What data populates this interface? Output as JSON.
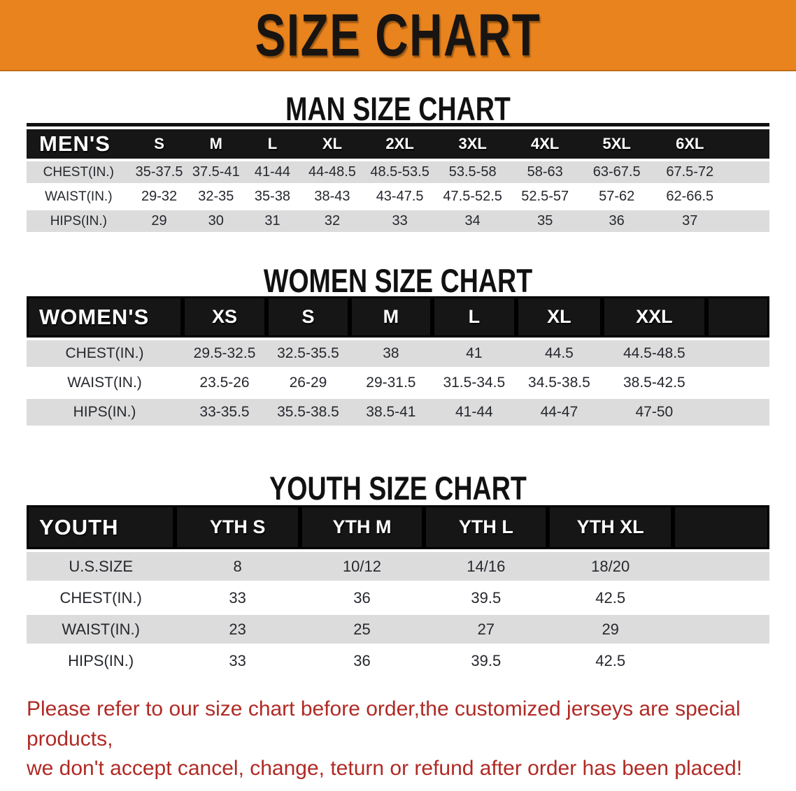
{
  "banner": {
    "title": "SIZE CHART"
  },
  "men": {
    "title": "MAN SIZE CHART",
    "header": [
      "MEN'S",
      "S",
      "M",
      "L",
      "XL",
      "2XL",
      "3XL",
      "4XL",
      "5XL",
      "6XL"
    ],
    "rows": [
      [
        "CHEST(IN.)",
        "35-37.5",
        "37.5-41",
        "41-44",
        "44-48.5",
        "48.5-53.5",
        "53.5-58",
        "58-63",
        "63-67.5",
        "67.5-72"
      ],
      [
        "WAIST(IN.)",
        "29-32",
        "32-35",
        "35-38",
        "38-43",
        "43-47.5",
        "47.5-52.5",
        "52.5-57",
        "57-62",
        "62-66.5"
      ],
      [
        "HIPS(IN.)",
        "29",
        "30",
        "31",
        "32",
        "33",
        "34",
        "35",
        "36",
        "37"
      ]
    ]
  },
  "women": {
    "title": "WOMEN SIZE CHART",
    "header": [
      "WOMEN'S",
      "XS",
      "S",
      "M",
      "L",
      "XL",
      "XXL"
    ],
    "rows": [
      [
        "CHEST(IN.)",
        "29.5-32.5",
        "32.5-35.5",
        "38",
        "41",
        "44.5",
        "44.5-48.5"
      ],
      [
        "WAIST(IN.)",
        "23.5-26",
        "26-29",
        "29-31.5",
        "31.5-34.5",
        "34.5-38.5",
        "38.5-42.5"
      ],
      [
        "HIPS(IN.)",
        "33-35.5",
        "35.5-38.5",
        "38.5-41",
        "41-44",
        "44-47",
        "47-50"
      ]
    ]
  },
  "youth": {
    "title": "YOUTH SIZE CHART",
    "header": [
      "YOUTH",
      "YTH S",
      "YTH M",
      "YTH L",
      "YTH XL"
    ],
    "rows": [
      [
        "U.S.SIZE",
        "8",
        "10/12",
        "14/16",
        "18/20"
      ],
      [
        "CHEST(IN.)",
        "33",
        "36",
        "39.5",
        "42.5"
      ],
      [
        "WAIST(IN.)",
        "23",
        "25",
        "27",
        "29"
      ],
      [
        "HIPS(IN.)",
        "33",
        "36",
        "39.5",
        "42.5"
      ]
    ]
  },
  "footer": {
    "line1": "Please refer to our size chart before order,the customized jerseys are special products,",
    "line2": "we don't accept cancel, change, teturn or refund after order has been placed!"
  },
  "colors": {
    "banner_orange": "#E8831E",
    "header_black": "#161616",
    "row_gray": "#DCDCDC",
    "notice_red": "#B02A25"
  }
}
